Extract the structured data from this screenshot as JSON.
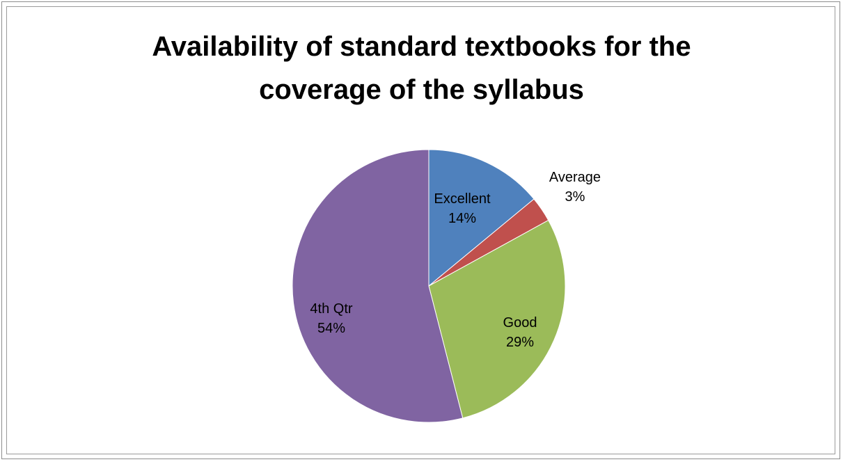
{
  "chart_data": {
    "type": "pie",
    "title_lines": [
      "Availability of standard textbooks for the",
      "coverage of the syllabus"
    ],
    "slices": [
      {
        "label": "Excellent",
        "value": 14,
        "percent_label": "14%",
        "color": "#4F81BD"
      },
      {
        "label": "Average",
        "value": 3,
        "percent_label": "3%",
        "color": "#C0504D"
      },
      {
        "label": "Good",
        "value": 29,
        "percent_label": "29%",
        "color": "#9BBB59"
      },
      {
        "label": "4th Qtr",
        "value": 54,
        "percent_label": "54%",
        "color": "#8064A2"
      }
    ],
    "start_angle_deg": 0,
    "direction": "clockwise",
    "legend": "none",
    "data_labels": "category-and-percent"
  }
}
